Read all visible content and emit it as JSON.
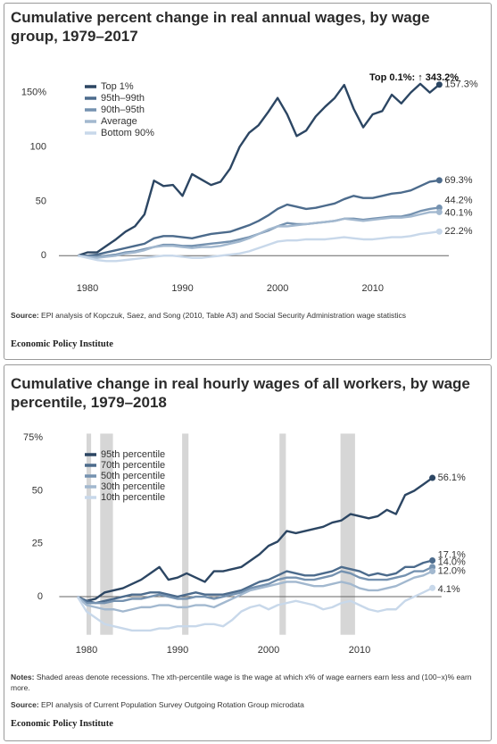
{
  "chart_data": [
    {
      "type": "line",
      "title": "Cumulative percent change in real annual wages, by wage group, 1979–2017",
      "annotation": "Top 0.1%: ↑ 343.2%",
      "x": [
        1979,
        1980,
        1981,
        1982,
        1983,
        1984,
        1985,
        1986,
        1987,
        1988,
        1989,
        1990,
        1991,
        1992,
        1993,
        1994,
        1995,
        1996,
        1997,
        1998,
        1999,
        2000,
        2001,
        2002,
        2003,
        2004,
        2005,
        2006,
        2007,
        2008,
        2009,
        2010,
        2011,
        2012,
        2013,
        2014,
        2015,
        2016,
        2017
      ],
      "xlim": [
        1977,
        2018
      ],
      "xticks": [
        1980,
        1990,
        2000,
        2010
      ],
      "ylim": [
        -8,
        162
      ],
      "yticks": [
        0,
        50,
        100,
        {
          "value": 150,
          "label": "150%"
        }
      ],
      "grid": false,
      "zero_line": true,
      "legend": "top-left",
      "series": [
        {
          "name": "Top 1%",
          "color": "#2c4663",
          "end_label": "157.3%",
          "values": [
            0,
            3,
            3,
            9,
            15,
            22,
            27,
            38,
            69,
            64,
            65,
            55,
            75,
            70,
            65,
            68,
            80,
            100,
            113,
            120,
            132,
            145,
            130,
            110,
            115,
            128,
            137,
            145,
            157,
            135,
            118,
            130,
            133,
            148,
            140,
            150,
            158,
            150,
            157.3
          ]
        },
        {
          "name": "95th–99th",
          "color": "#4c6b8c",
          "end_label": "69.3%",
          "values": [
            0,
            0,
            1,
            3,
            5,
            7,
            9,
            11,
            16,
            18,
            18,
            17,
            16,
            18,
            20,
            21,
            22,
            25,
            28,
            32,
            37,
            43,
            47,
            45,
            43,
            44,
            46,
            48,
            52,
            55,
            53,
            53,
            55,
            57,
            58,
            60,
            64,
            68,
            69.3
          ]
        },
        {
          "name": "90th–95th",
          "color": "#7592b0",
          "end_label": "44.2%",
          "values": [
            0,
            -1,
            -1,
            0,
            1,
            3,
            4,
            6,
            8,
            10,
            10,
            9,
            9,
            10,
            11,
            12,
            13,
            15,
            17,
            20,
            23,
            27,
            30,
            29,
            29,
            30,
            31,
            32,
            34,
            34,
            33,
            34,
            35,
            36,
            36,
            38,
            41,
            43,
            44.2
          ]
        },
        {
          "name": "Average",
          "color": "#a2b8cf",
          "end_label": "40.1%",
          "values": [
            0,
            -1,
            -2,
            -1,
            0,
            2,
            3,
            5,
            8,
            9,
            9,
            8,
            7,
            8,
            8,
            9,
            11,
            13,
            16,
            20,
            24,
            27,
            27,
            28,
            29,
            30,
            31,
            32,
            34,
            33,
            32,
            33,
            34,
            35,
            35,
            36,
            38,
            40,
            40.1
          ]
        },
        {
          "name": "Bottom 90%",
          "color": "#c8d8ea",
          "end_label": "22.2%",
          "values": [
            0,
            -2,
            -4,
            -5,
            -5,
            -4,
            -3,
            -2,
            -1,
            0,
            0,
            -1,
            -2,
            -2,
            -1,
            0,
            1,
            2,
            4,
            7,
            10,
            13,
            14,
            14,
            15,
            15,
            15,
            16,
            17,
            16,
            15,
            15,
            16,
            17,
            17,
            18,
            20,
            21,
            22.2
          ]
        }
      ],
      "source_label": "Source:",
      "source": "EPI analysis of Kopczuk, Saez, and Song (2010, Table A3) and Social Security Administration wage statistics",
      "credit": "Economic Policy Institute"
    },
    {
      "type": "line",
      "title": "Cumulative change in real hourly wages of all workers, by wage percentile, 1979–2018",
      "x": [
        1979,
        1980,
        1981,
        1982,
        1983,
        1984,
        1985,
        1986,
        1987,
        1988,
        1989,
        1990,
        1991,
        1992,
        1993,
        1994,
        1995,
        1996,
        1997,
        1998,
        1999,
        2000,
        2001,
        2002,
        2003,
        2004,
        2005,
        2006,
        2007,
        2008,
        2009,
        2010,
        2011,
        2012,
        2013,
        2014,
        2015,
        2016,
        2017,
        2018
      ],
      "xlim": [
        1977,
        2019
      ],
      "xticks": [
        1980,
        1990,
        2000,
        2010
      ],
      "ylim": [
        -18,
        77
      ],
      "yticks": [
        0,
        25,
        50,
        {
          "value": 75,
          "label": "75%"
        }
      ],
      "grid": false,
      "zero_line": true,
      "legend": "top-left",
      "recessions": [
        [
          1980,
          1980.5
        ],
        [
          1981.5,
          1982.9
        ],
        [
          1990.5,
          1991.2
        ],
        [
          2001.2,
          2001.9
        ],
        [
          2007.9,
          2009.5
        ]
      ],
      "series": [
        {
          "name": "95th percentile",
          "color": "#2c4663",
          "end_label": "56.1%",
          "values": [
            0,
            -2,
            -1,
            2,
            3,
            4,
            6,
            8,
            11,
            14,
            8,
            9,
            11,
            9,
            7,
            12,
            12,
            13,
            14,
            17,
            20,
            24,
            26,
            31,
            30,
            31,
            32,
            33,
            35,
            36,
            39,
            38,
            37,
            38,
            41,
            39,
            48,
            50,
            53,
            56.1
          ]
        },
        {
          "name": "70th percentile",
          "color": "#4c6b8c",
          "end_label": "17.1%",
          "values": [
            0,
            -2,
            -3,
            -2,
            -1,
            0,
            1,
            1,
            2,
            2,
            1,
            0,
            1,
            2,
            1,
            1,
            1,
            2,
            3,
            5,
            7,
            8,
            10,
            12,
            11,
            10,
            10,
            11,
            12,
            14,
            13,
            12,
            10,
            11,
            10,
            11,
            14,
            14,
            16,
            17.1
          ]
        },
        {
          "name": "50th percentile",
          "color": "#7592b0",
          "end_label": "14.0%",
          "values": [
            0,
            -3,
            -3,
            -3,
            -2,
            -2,
            -1,
            -1,
            0,
            1,
            0,
            -1,
            -1,
            0,
            0,
            -1,
            0,
            1,
            2,
            4,
            5,
            6,
            8,
            9,
            9,
            8,
            8,
            9,
            10,
            12,
            11,
            9,
            8,
            8,
            8,
            9,
            10,
            12,
            12,
            14.0
          ]
        },
        {
          "name": "30th percentile",
          "color": "#a2b8cf",
          "end_label": "12.0%",
          "values": [
            0,
            -4,
            -5,
            -6,
            -6,
            -7,
            -6,
            -5,
            -5,
            -4,
            -4,
            -5,
            -5,
            -4,
            -4,
            -5,
            -3,
            -1,
            1,
            3,
            4,
            5,
            6,
            7,
            7,
            6,
            5,
            5,
            6,
            7,
            6,
            4,
            3,
            3,
            4,
            5,
            7,
            9,
            10,
            12.0
          ]
        },
        {
          "name": "10th percentile",
          "color": "#c8d8ea",
          "end_label": "4.1%",
          "values": [
            0,
            -7,
            -10,
            -13,
            -14,
            -15,
            -16,
            -16,
            -16,
            -15,
            -15,
            -14,
            -14,
            -14,
            -13,
            -13,
            -14,
            -11,
            -7,
            -5,
            -4,
            -6,
            -4,
            -3,
            -2,
            -3,
            -4,
            -6,
            -5,
            -3,
            -2,
            -4,
            -6,
            -7,
            -6,
            -6,
            -2,
            0,
            2,
            4.1
          ]
        }
      ],
      "notes_label": "Notes:",
      "notes": "Shaded areas denote recessions. The xth-percentile wage is the wage at which x% of wage earners earn less and (100−x)% earn more.",
      "source_label": "Source:",
      "source": "EPI analysis of Current Population Survey Outgoing Rotation Group microdata",
      "credit": "Economic Policy Institute"
    }
  ]
}
